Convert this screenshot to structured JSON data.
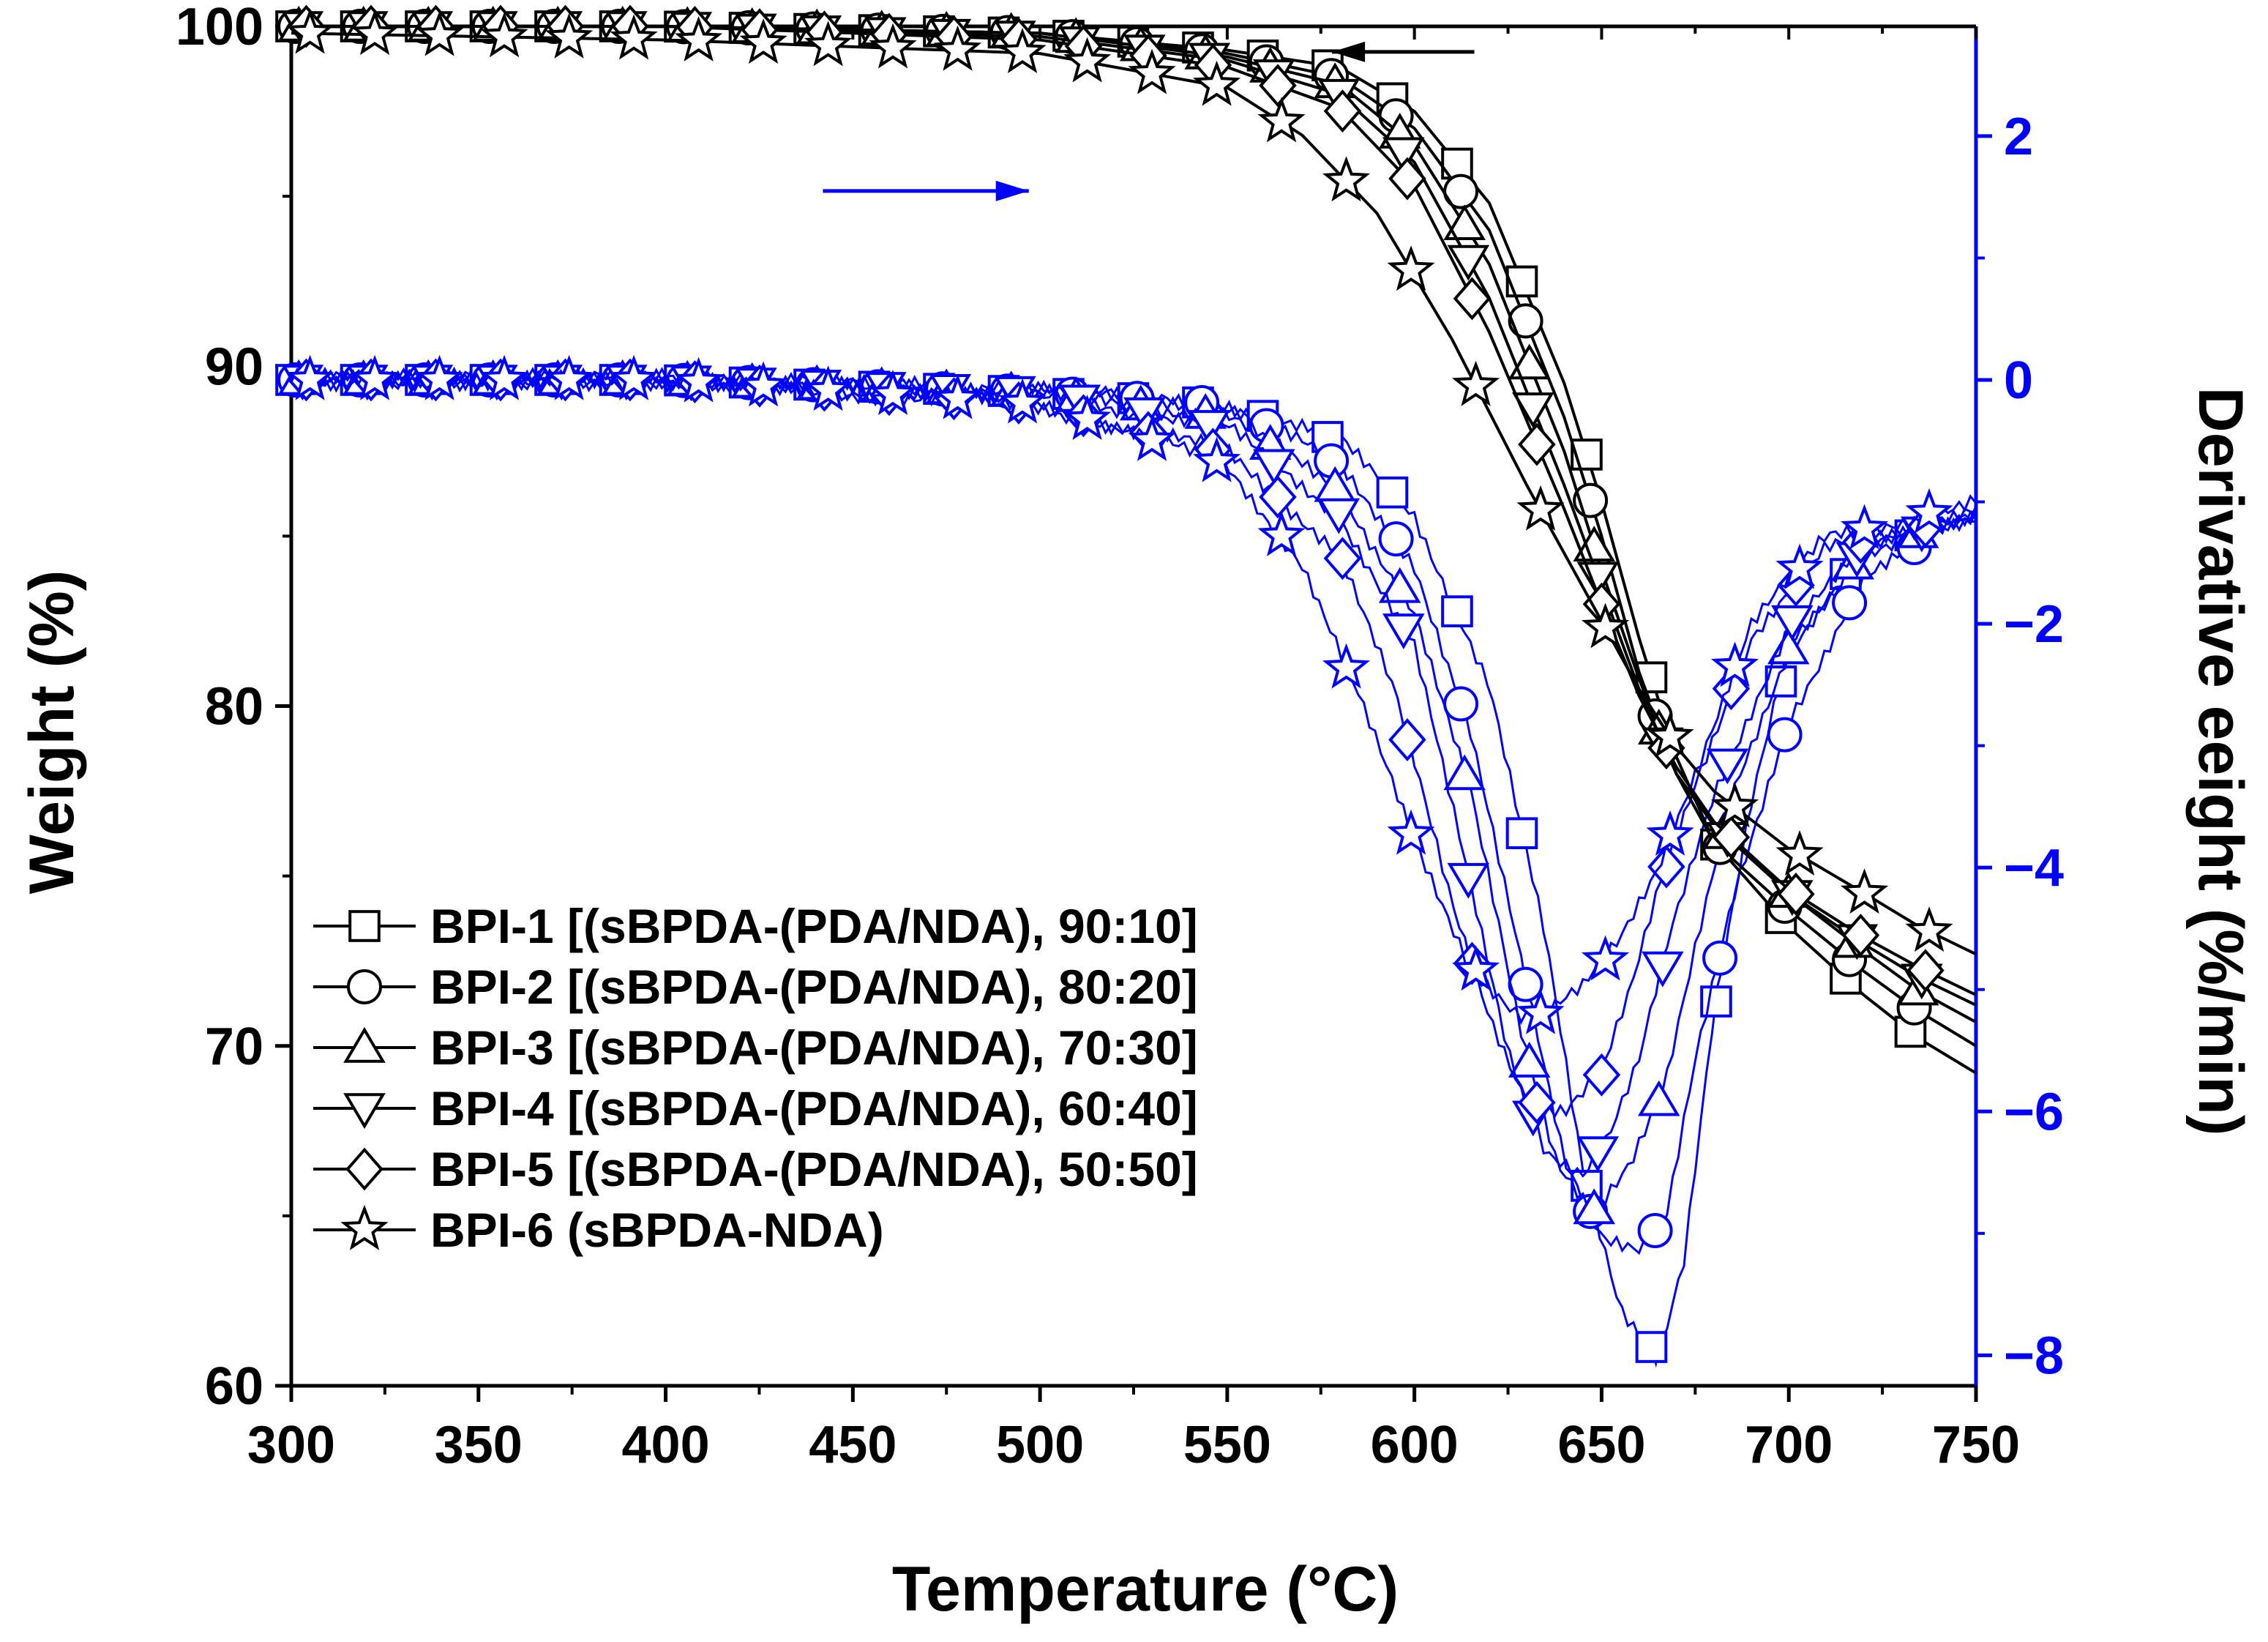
{
  "chart_data": {
    "type": "line",
    "xlabel": "Temperature (°C)",
    "ylabel": "Weight (%)",
    "y2label": "Derivative eeight (%/min)",
    "xlim": [
      300,
      750
    ],
    "ylim": [
      60,
      100
    ],
    "y2lim": [
      -8.25,
      2.9
    ],
    "xticks": [
      300,
      350,
      400,
      450,
      500,
      550,
      600,
      650,
      700,
      750
    ],
    "yticks": [
      60,
      70,
      80,
      90,
      100
    ],
    "y2ticks": [
      -8,
      -6,
      -4,
      -2,
      0,
      2
    ],
    "y2tick_labels": [
      "−8",
      "−6",
      "−4",
      "−2",
      "0",
      "2"
    ],
    "colors": {
      "weight": "#000000",
      "derivative": "#0000ff"
    },
    "annotations": [
      {
        "type": "arrow",
        "direction": "left",
        "series": "weight"
      },
      {
        "type": "arrow",
        "direction": "right",
        "series": "derivative"
      }
    ],
    "legend_position": "bottom-left",
    "series": [
      {
        "name": "BPI-1 [(sBPDA-(PDA/NDA), 90:10]",
        "marker": "square",
        "weight": {
          "x": [
            300,
            400,
            500,
            550,
            580,
            600,
            620,
            640,
            650,
            660,
            670,
            680,
            700,
            720,
            735,
            750
          ],
          "y": [
            100,
            100,
            99.8,
            99.3,
            98.8,
            97.5,
            94.8,
            89.5,
            86,
            82,
            78.5,
            76,
            73.5,
            71.5,
            70.2,
            69.2
          ]
        },
        "derivative": {
          "x": [
            300,
            400,
            500,
            550,
            580,
            600,
            620,
            635,
            645,
            655,
            665,
            672,
            680,
            690,
            700,
            720,
            750
          ],
          "y": [
            0,
            0,
            -0.1,
            -0.2,
            -0.5,
            -1.1,
            -2.5,
            -4.6,
            -6.5,
            -7.6,
            -8.0,
            -7.2,
            -5.2,
            -3.5,
            -2.2,
            -1.4,
            -1.1
          ]
        }
      },
      {
        "name": "BPI-2 [(sBPDA-(PDA/NDA), 80:20]",
        "marker": "circle",
        "weight": {
          "x": [
            300,
            400,
            500,
            550,
            580,
            600,
            620,
            640,
            650,
            660,
            670,
            680,
            700,
            720,
            735,
            750
          ],
          "y": [
            100,
            100,
            99.8,
            99.2,
            98.5,
            97,
            94,
            88.5,
            85,
            81,
            78,
            76,
            74,
            72.2,
            71,
            70
          ]
        },
        "derivative": {
          "x": [
            300,
            400,
            500,
            550,
            580,
            600,
            615,
            630,
            640,
            650,
            660,
            667,
            675,
            685,
            700,
            720,
            750
          ],
          "y": [
            0,
            0,
            -0.1,
            -0.2,
            -0.7,
            -1.5,
            -2.9,
            -5.0,
            -6.4,
            -7.0,
            -7.1,
            -6.9,
            -5.6,
            -4.3,
            -2.8,
            -1.6,
            -1.1
          ]
        }
      },
      {
        "name": "BPI-3 [(sBPDA-(PDA/NDA), 70:30]",
        "marker": "triangle-up",
        "weight": {
          "x": [
            300,
            400,
            500,
            550,
            580,
            600,
            620,
            640,
            650,
            660,
            670,
            680,
            700,
            720,
            735,
            750
          ],
          "y": [
            100,
            100,
            99.8,
            99.1,
            98.3,
            96.5,
            93,
            87.5,
            84,
            80.8,
            78,
            76.5,
            74.5,
            72.8,
            71.6,
            70.7
          ]
        },
        "derivative": {
          "x": [
            300,
            400,
            500,
            550,
            580,
            600,
            615,
            628,
            638,
            648,
            658,
            667,
            675,
            685,
            700,
            720,
            750
          ],
          "y": [
            0,
            0,
            -0.1,
            -0.3,
            -0.9,
            -1.9,
            -3.4,
            -5.3,
            -6.4,
            -6.8,
            -6.4,
            -5.8,
            -4.7,
            -3.4,
            -2.2,
            -1.4,
            -1.1
          ]
        }
      },
      {
        "name": "BPI-4 [(sBPDA-(PDA/NDA), 60:40]",
        "marker": "triangle-down",
        "weight": {
          "x": [
            300,
            400,
            500,
            550,
            580,
            600,
            620,
            640,
            650,
            660,
            670,
            680,
            700,
            720,
            735,
            750
          ],
          "y": [
            100,
            100,
            99.7,
            99,
            98,
            96,
            92,
            86.5,
            83.5,
            80.5,
            78,
            76.5,
            74.5,
            73,
            72,
            71.2
          ]
        },
        "derivative": {
          "x": [
            300,
            400,
            500,
            550,
            580,
            600,
            613,
            625,
            635,
            645,
            652,
            660,
            668,
            680,
            700,
            720,
            750
          ],
          "y": [
            0,
            0,
            -0.1,
            -0.4,
            -1.1,
            -2.2,
            -3.9,
            -5.5,
            -6.3,
            -6.5,
            -6.2,
            -5.6,
            -4.6,
            -3.4,
            -2.0,
            -1.4,
            -1.1
          ]
        }
      },
      {
        "name": "BPI-5 [(sBPDA-(PDA/NDA), 50:50]",
        "marker": "diamond",
        "weight": {
          "x": [
            300,
            400,
            500,
            550,
            580,
            600,
            620,
            640,
            650,
            660,
            670,
            680,
            700,
            720,
            735,
            750
          ],
          "y": [
            100,
            100,
            99.6,
            98.8,
            97.6,
            95.3,
            91,
            85.8,
            83,
            80.3,
            78.2,
            76.6,
            74.6,
            73.2,
            72.3,
            71.5
          ]
        },
        "derivative": {
          "x": [
            300,
            400,
            500,
            550,
            580,
            595,
            610,
            620,
            630,
            640,
            650,
            658,
            665,
            675,
            690,
            710,
            750
          ],
          "y": [
            0,
            0,
            -0.2,
            -0.6,
            -1.4,
            -2.6,
            -4.3,
            -5.2,
            -5.9,
            -6.0,
            -5.7,
            -5.0,
            -4.2,
            -3.3,
            -2.1,
            -1.4,
            -1.1
          ]
        }
      },
      {
        "name": "BPI-6 (sBPDA-NDA)",
        "marker": "star",
        "weight": {
          "x": [
            300,
            400,
            500,
            550,
            570,
            590,
            610,
            630,
            650,
            660,
            670,
            680,
            700,
            720,
            735,
            750
          ],
          "y": [
            99.8,
            99.6,
            99.2,
            98.2,
            96.8,
            94.5,
            90.8,
            86.5,
            82.5,
            80.5,
            78.8,
            77.5,
            75.8,
            74.5,
            73.5,
            72.7
          ]
        },
        "derivative": {
          "x": [
            300,
            400,
            500,
            550,
            570,
            585,
            600,
            615,
            628,
            635,
            645,
            655,
            665,
            675,
            690,
            710,
            750
          ],
          "y": [
            0,
            0,
            -0.2,
            -0.7,
            -1.5,
            -2.6,
            -3.8,
            -4.8,
            -5.2,
            -5.2,
            -5.0,
            -4.6,
            -4.0,
            -3.2,
            -2.0,
            -1.3,
            -1.0
          ]
        }
      }
    ]
  }
}
